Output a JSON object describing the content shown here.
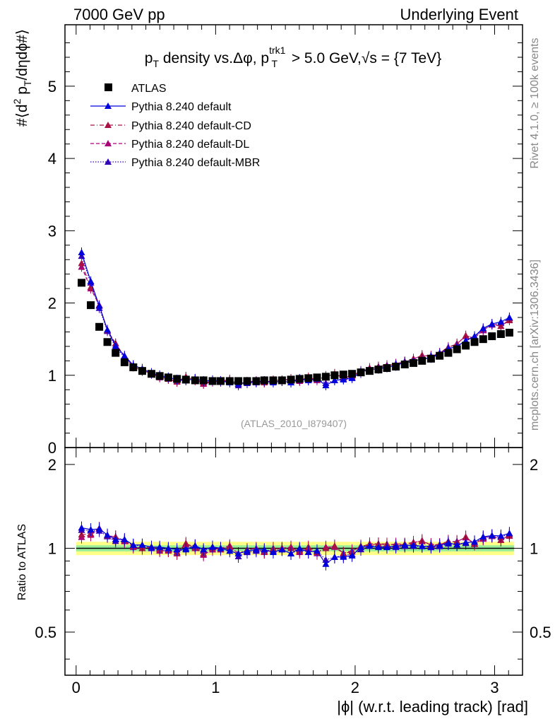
{
  "header": {
    "left": "7000 GeV pp",
    "right": "Underlying Event"
  },
  "side_labels": {
    "rivet": "Rivet 4.1.0, ≥ 100k events",
    "mcplots": "mcplots.cern.ch [arXiv:1306.3436]"
  },
  "chart_data": {
    "type": "scatter",
    "title": "p_T density vs.Δφ, p_T^trk1 > 5.0 GeV,√s = {7 TeV}",
    "title_parts": {
      "a": "p",
      "a_sub": "T",
      "b": " density vs.Δφ, p",
      "b_sup": "trk1",
      "b_sub": "T",
      "c": " > 5.0 GeV,",
      "d": "s = {7 TeV}"
    },
    "analysis_id": "(ATLAS_2010_I879407)",
    "ylabel_parts": {
      "a": "#⟨d",
      "a_sup": "2",
      "b": " p",
      "b_sub": "T",
      "c": "/dηdϕ#⟩"
    },
    "xlabel": "|ϕ| (w.r.t. leading track) [rad]",
    "ratio_ylabel": "Ratio to ATLAS",
    "xlim": [
      -0.08,
      3.2
    ],
    "ylim": [
      0,
      5.85
    ],
    "ratio_ylim": [
      0.35,
      2.3
    ],
    "main_yticks": [
      {
        "v": 1,
        "label": "1"
      },
      {
        "v": 2,
        "label": "2"
      },
      {
        "v": 3,
        "label": "3"
      },
      {
        "v": 4,
        "label": "4"
      },
      {
        "v": 5,
        "label": "5"
      },
      {
        "v": 0,
        "label": "0"
      }
    ],
    "ratio_yticks": [
      {
        "v": 0.5,
        "label": "0.5"
      },
      {
        "v": 1,
        "label": "1"
      },
      {
        "v": 2,
        "label": "2"
      }
    ],
    "xticks": [
      {
        "v": 0,
        "label": "0"
      },
      {
        "v": 1,
        "label": "1"
      },
      {
        "v": 2,
        "label": "2"
      },
      {
        "v": 3,
        "label": "3"
      }
    ],
    "legend": [
      "ATLAS",
      "Pythia 8.240 default",
      "Pythia 8.240 default-CD",
      "Pythia 8.240 default-DL",
      "Pythia 8.240 default-MBR"
    ],
    "colors": {
      "data": "#000000",
      "default": "#0000dd",
      "cd": "#aa1144",
      "dl": "#aa0077",
      "mbr": "#3300bb",
      "band_inner": "#99ee99",
      "band_outer": "#ffff88"
    },
    "x": [
      0.039,
      0.105,
      0.166,
      0.224,
      0.283,
      0.347,
      0.41,
      0.474,
      0.54,
      0.599,
      0.661,
      0.723,
      0.787,
      0.853,
      0.913,
      0.978,
      1.036,
      1.101,
      1.163,
      1.226,
      1.291,
      1.349,
      1.413,
      1.476,
      1.54,
      1.602,
      1.665,
      1.727,
      1.79,
      1.853,
      1.916,
      1.978,
      2.041,
      2.104,
      2.167,
      2.228,
      2.292,
      2.356,
      2.418,
      2.48,
      2.544,
      2.606,
      2.668,
      2.73,
      2.793,
      2.856,
      2.918,
      2.981,
      3.045,
      3.106
    ],
    "series": [
      {
        "name": "ATLAS",
        "values": [
          2.28,
          1.97,
          1.67,
          1.46,
          1.31,
          1.18,
          1.11,
          1.06,
          1.02,
          0.99,
          0.97,
          0.95,
          0.94,
          0.93,
          0.93,
          0.92,
          0.92,
          0.92,
          0.92,
          0.92,
          0.92,
          0.93,
          0.93,
          0.93,
          0.94,
          0.95,
          0.96,
          0.97,
          0.98,
          1.0,
          1.01,
          1.02,
          1.04,
          1.06,
          1.08,
          1.1,
          1.12,
          1.15,
          1.17,
          1.2,
          1.23,
          1.27,
          1.31,
          1.36,
          1.41,
          1.46,
          1.5,
          1.54,
          1.57,
          1.59
        ]
      },
      {
        "name": "Pythia 8.240 default",
        "values": [
          2.7,
          2.3,
          1.96,
          1.63,
          1.41,
          1.27,
          1.14,
          1.09,
          1.03,
          1.0,
          0.97,
          0.94,
          0.93,
          0.95,
          0.92,
          0.93,
          0.92,
          0.9,
          0.88,
          0.9,
          0.91,
          0.92,
          0.9,
          0.92,
          0.9,
          0.95,
          0.93,
          0.95,
          0.86,
          0.93,
          0.94,
          0.96,
          1.05,
          1.08,
          1.09,
          1.11,
          1.14,
          1.18,
          1.2,
          1.22,
          1.25,
          1.3,
          1.37,
          1.4,
          1.48,
          1.54,
          1.65,
          1.71,
          1.74,
          1.8
        ]
      },
      {
        "name": "Pythia 8.240 default-CD",
        "values": [
          2.55,
          2.22,
          1.97,
          1.62,
          1.44,
          1.26,
          1.13,
          1.06,
          1.03,
          0.98,
          0.95,
          0.91,
          0.98,
          0.93,
          0.89,
          0.92,
          0.91,
          0.93,
          0.88,
          0.91,
          0.91,
          0.9,
          0.93,
          0.93,
          0.94,
          0.93,
          0.97,
          0.94,
          0.98,
          1.02,
          0.97,
          0.99,
          1.06,
          1.09,
          1.12,
          1.14,
          1.15,
          1.19,
          1.22,
          1.28,
          1.26,
          1.31,
          1.39,
          1.43,
          1.55,
          1.51,
          1.64,
          1.7,
          1.68,
          1.76
        ]
      },
      {
        "name": "Pythia 8.240 default-DL",
        "values": [
          2.5,
          2.2,
          1.97,
          1.62,
          1.44,
          1.25,
          1.12,
          1.06,
          1.03,
          0.97,
          0.95,
          0.91,
          0.97,
          0.95,
          0.88,
          0.91,
          0.92,
          0.94,
          0.88,
          0.91,
          0.92,
          0.9,
          0.92,
          0.93,
          0.95,
          0.92,
          0.96,
          0.93,
          0.99,
          1.01,
          0.97,
          1.0,
          1.05,
          1.1,
          1.12,
          1.13,
          1.16,
          1.19,
          1.23,
          1.27,
          1.27,
          1.31,
          1.38,
          1.44,
          1.54,
          1.52,
          1.62,
          1.71,
          1.68,
          1.77
        ]
      },
      {
        "name": "Pythia 8.240 default-MBR",
        "values": [
          2.65,
          2.28,
          1.93,
          1.61,
          1.39,
          1.25,
          1.14,
          1.08,
          1.02,
          0.99,
          0.96,
          0.92,
          0.94,
          0.94,
          0.91,
          0.93,
          0.92,
          0.92,
          0.86,
          0.89,
          0.9,
          0.91,
          0.91,
          0.92,
          0.9,
          0.94,
          0.93,
          0.95,
          0.89,
          0.93,
          0.95,
          0.97,
          1.03,
          1.08,
          1.1,
          1.11,
          1.13,
          1.17,
          1.19,
          1.22,
          1.24,
          1.29,
          1.36,
          1.4,
          1.47,
          1.54,
          1.63,
          1.7,
          1.72,
          1.79
        ]
      }
    ],
    "band_inner": [
      0.975,
      1.025
    ],
    "band_outer": [
      0.945,
      1.055
    ]
  }
}
